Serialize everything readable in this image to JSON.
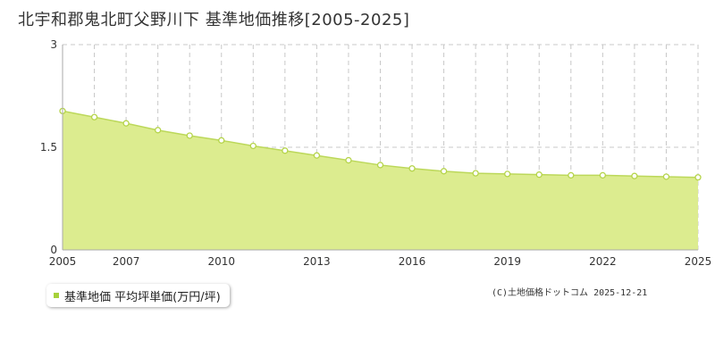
{
  "title": "北宇和郡鬼北町父野川下 基準地価推移[2005-2025]",
  "credit": "(C)土地価格ドットコム 2025-12-21",
  "legend": {
    "label": "基準地価 平均坪単価(万円/坪)"
  },
  "colors": {
    "fill": "#dcec8f",
    "line": "#bcd85a",
    "marker_stroke": "#b5d44a",
    "legend_swatch": "#a6d13a",
    "grid": "#c8c8c8"
  },
  "chart_data": {
    "type": "area",
    "title": "北宇和郡鬼北町父野川下 基準地価推移[2005-2025]",
    "xlabel": "",
    "ylabel": "",
    "xlim": [
      2005,
      2025
    ],
    "ylim": [
      0,
      3
    ],
    "yticks": [
      0,
      1.5,
      3
    ],
    "ytick_labels": [
      "0",
      "1.5",
      "3"
    ],
    "xtick_labels": [
      2005,
      2007,
      2010,
      2013,
      2016,
      2019,
      2022,
      2025
    ],
    "grid": true,
    "legend_position": "bottom-left",
    "series": [
      {
        "name": "基準地価 平均坪単価(万円/坪)",
        "x": [
          2005,
          2006,
          2007,
          2008,
          2009,
          2010,
          2011,
          2012,
          2013,
          2014,
          2015,
          2016,
          2017,
          2018,
          2019,
          2020,
          2021,
          2022,
          2023,
          2024,
          2025
        ],
        "values": [
          2.03,
          1.94,
          1.85,
          1.75,
          1.67,
          1.6,
          1.52,
          1.45,
          1.38,
          1.31,
          1.24,
          1.19,
          1.15,
          1.12,
          1.11,
          1.1,
          1.09,
          1.09,
          1.08,
          1.07,
          1.06
        ]
      }
    ]
  }
}
